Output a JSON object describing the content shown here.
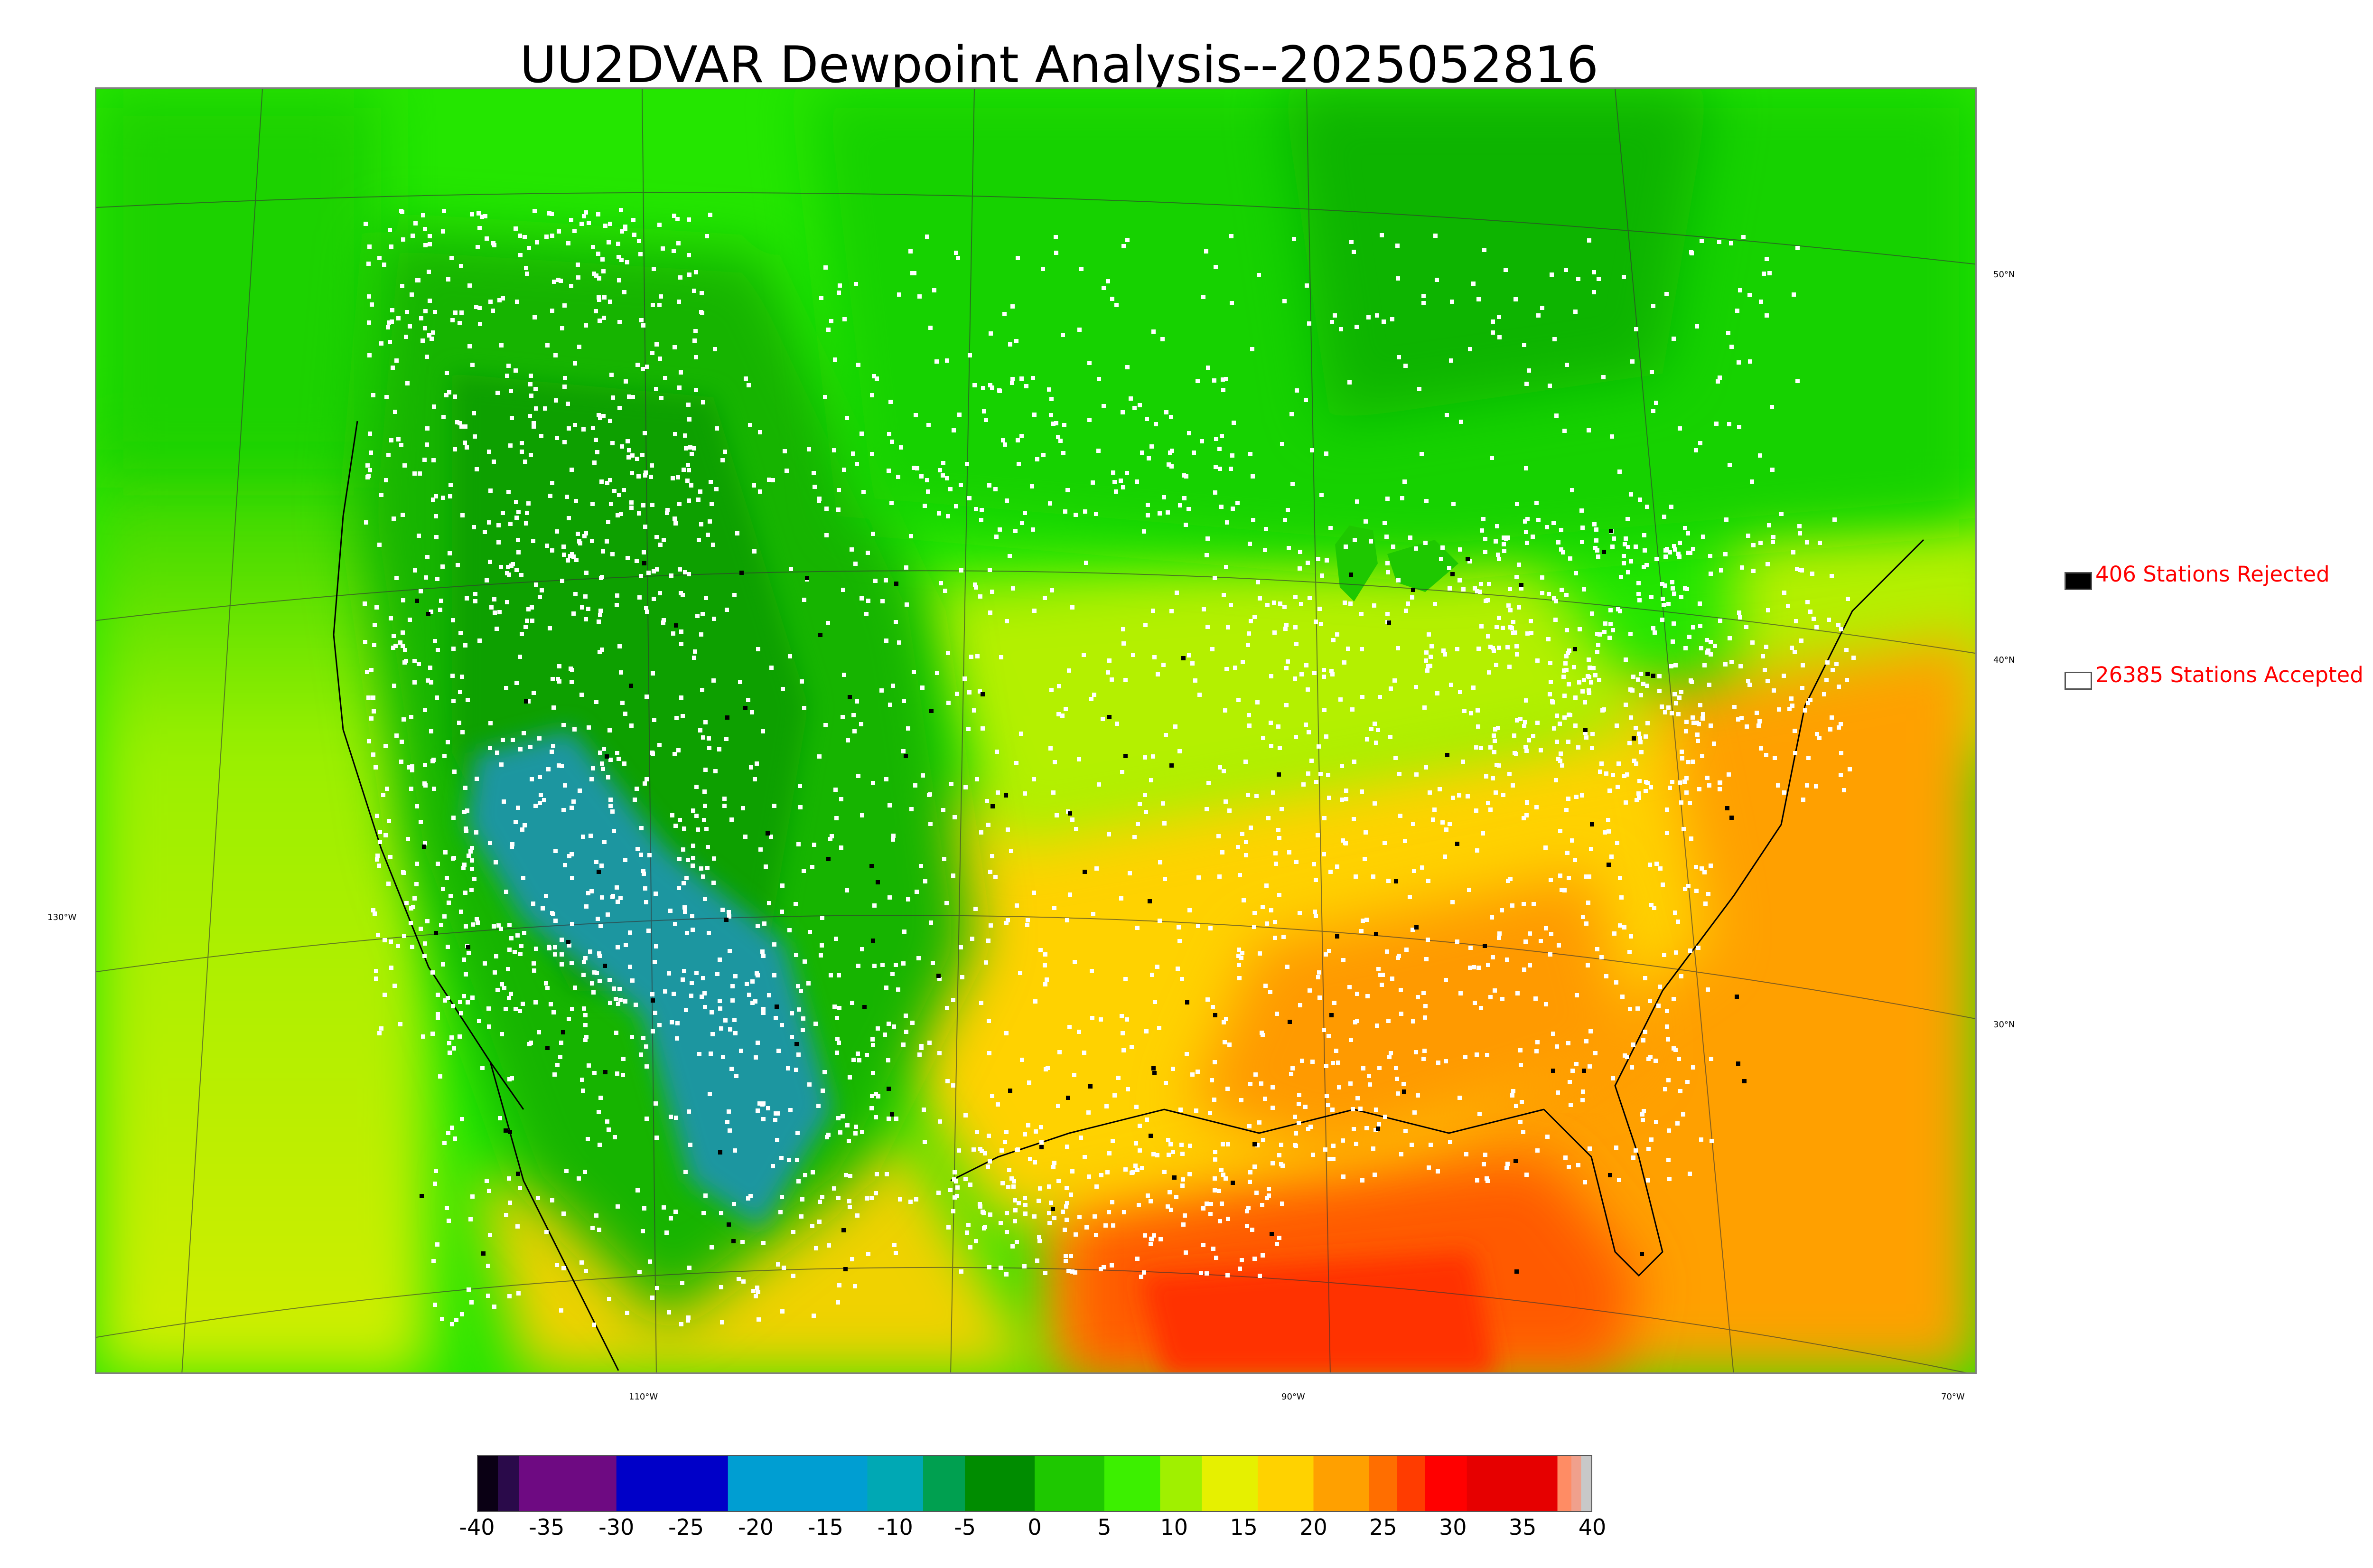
{
  "title": "UU2DVAR Dewpoint Analysis--2025052816",
  "map": {
    "lat_labels": [
      "50°N",
      "40°N",
      "30°N"
    ],
    "lon_labels": [
      "130°W",
      "110°W",
      "90°W",
      "70°W"
    ],
    "field": "dewpoint"
  },
  "legend": {
    "rejected": {
      "count_label": "406 Stations Rejected",
      "swatch_color": "#000000"
    },
    "accepted": {
      "count_label": "26385 Stations Accepted",
      "swatch_color": "#ffffff"
    },
    "text_color": "#ff0000"
  },
  "colorbar": {
    "min": -40,
    "max": 40,
    "tick_labels": [
      "-40",
      "-35",
      "-30",
      "-25",
      "-20",
      "-15",
      "-10",
      "-5",
      "0",
      "5",
      "10",
      "15",
      "20",
      "25",
      "30",
      "35",
      "40"
    ],
    "segments": [
      {
        "from": -40,
        "to": -38.5,
        "color": "#0a0014"
      },
      {
        "from": -38.5,
        "to": -37,
        "color": "#2a0a4a"
      },
      {
        "from": -37,
        "to": -30,
        "color": "#6e0a82"
      },
      {
        "from": -30,
        "to": -22,
        "color": "#0000c8"
      },
      {
        "from": -22,
        "to": -12,
        "color": "#009ed2"
      },
      {
        "from": -12,
        "to": -8,
        "color": "#00a8b4"
      },
      {
        "from": -8,
        "to": -5,
        "color": "#00a050"
      },
      {
        "from": -5,
        "to": 0,
        "color": "#008c00"
      },
      {
        "from": 0,
        "to": 5,
        "color": "#1ec800"
      },
      {
        "from": 5,
        "to": 9,
        "color": "#3cf000"
      },
      {
        "from": 9,
        "to": 12,
        "color": "#a0f000"
      },
      {
        "from": 12,
        "to": 16,
        "color": "#e6f000"
      },
      {
        "from": 16,
        "to": 20,
        "color": "#ffd200"
      },
      {
        "from": 20,
        "to": 24,
        "color": "#ffa000"
      },
      {
        "from": 24,
        "to": 26,
        "color": "#ff6e00"
      },
      {
        "from": 26,
        "to": 28,
        "color": "#ff3c00"
      },
      {
        "from": 28,
        "to": 31,
        "color": "#ff0000"
      },
      {
        "from": 31,
        "to": 37.5,
        "color": "#e60000"
      },
      {
        "from": 37.5,
        "to": 38.5,
        "color": "#ff8c64"
      },
      {
        "from": 38.5,
        "to": 39.2,
        "color": "#f0a08c"
      },
      {
        "from": 39.2,
        "to": 40,
        "color": "#c8c8c8"
      }
    ]
  }
}
